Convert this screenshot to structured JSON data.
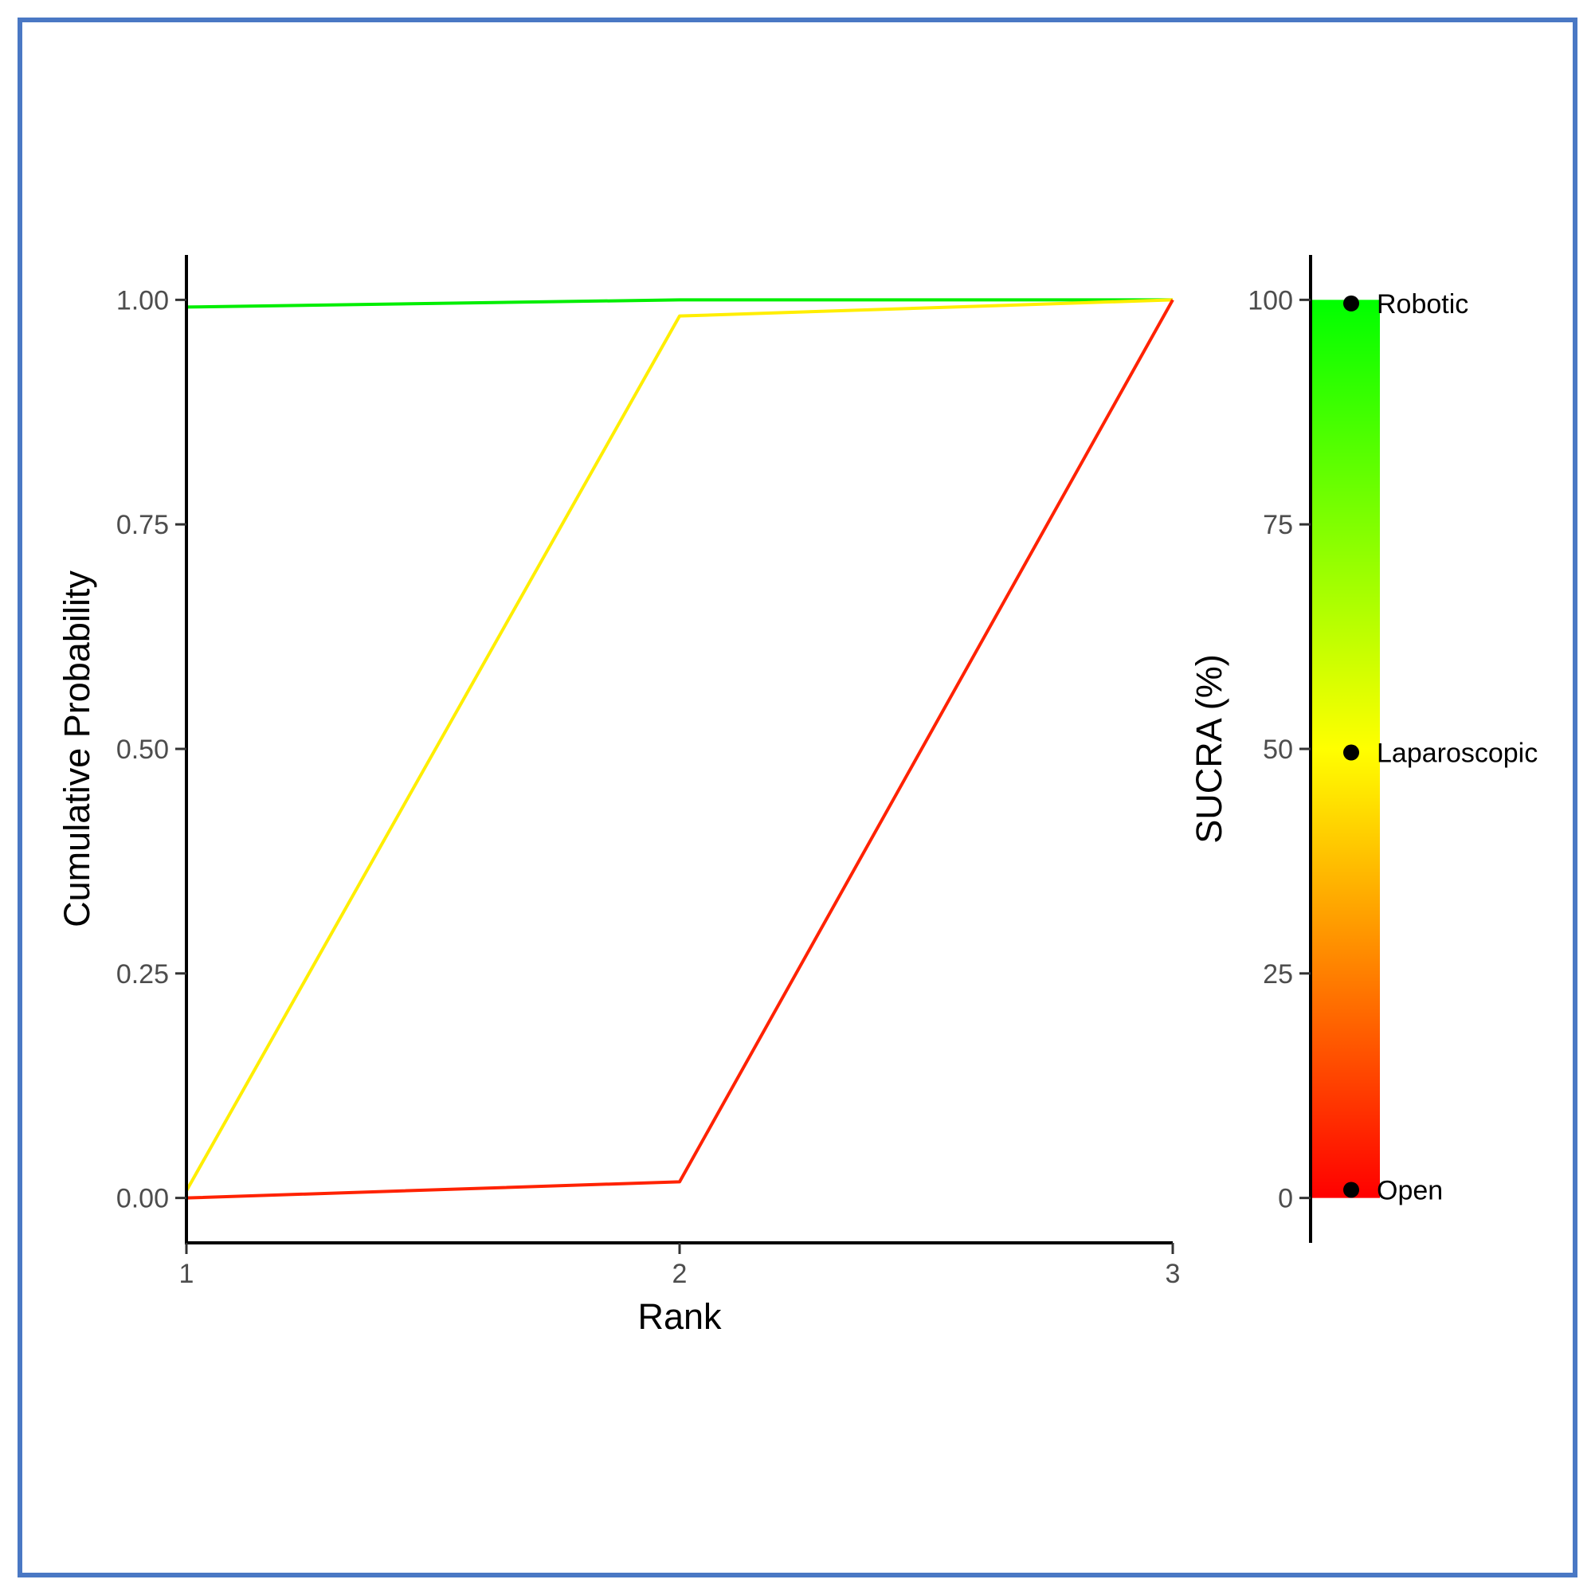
{
  "frame_color": "#4a78c4",
  "chart_data": [
    {
      "type": "line",
      "xlabel": "Rank",
      "ylabel": "Cumulative Probability",
      "x": [
        1,
        2,
        3
      ],
      "xlim": [
        1,
        3
      ],
      "ylim": [
        -0.05,
        1.05
      ],
      "xticks": [
        "1",
        "2",
        "3"
      ],
      "yticks": [
        "0.00",
        "0.25",
        "0.50",
        "0.75",
        "1.00"
      ],
      "grid": false,
      "series": [
        {
          "color": "#00ee00",
          "values": [
            0.992,
            1.0,
            1.0
          ]
        },
        {
          "color": "#ffee00",
          "values": [
            0.008,
            0.982,
            1.0
          ]
        },
        {
          "color": "#ff2200",
          "values": [
            0.0,
            0.018,
            1.0
          ]
        }
      ]
    },
    {
      "type": "scatter",
      "ylabel": "SUCRA (%)",
      "ylim": [
        -5,
        105
      ],
      "yticks": [
        "0",
        "25",
        "50",
        "75",
        "100"
      ],
      "gradient": {
        "low": "#ff0000",
        "mid": "#ffff00",
        "high": "#00ff00",
        "range": [
          0,
          100
        ]
      },
      "points": [
        {
          "label": "Robotic",
          "value": 99.6
        },
        {
          "label": "Laparoscopic",
          "value": 49.6
        },
        {
          "label": "Open",
          "value": 0.9
        }
      ]
    }
  ]
}
